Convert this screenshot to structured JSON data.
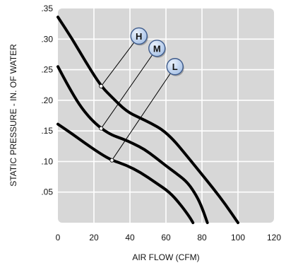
{
  "chart_data": {
    "type": "line",
    "xlabel": "AIR FLOW (CFM)",
    "ylabel": "STATIC PRESSURE - IN. OF WATER",
    "xlim": [
      0,
      120
    ],
    "ylim": [
      0,
      0.35
    ],
    "x_ticks": [
      {
        "value": 0,
        "label": "0"
      },
      {
        "value": 20,
        "label": "20"
      },
      {
        "value": 40,
        "label": "40"
      },
      {
        "value": 60,
        "label": "60"
      },
      {
        "value": 80,
        "label": "80"
      },
      {
        "value": 100,
        "label": "100"
      },
      {
        "value": 120,
        "label": "120"
      }
    ],
    "y_ticks": [
      {
        "value": 0.05,
        "label": ".05"
      },
      {
        "value": 0.1,
        "label": ".10"
      },
      {
        "value": 0.15,
        "label": ".15"
      },
      {
        "value": 0.2,
        "label": ".20"
      },
      {
        "value": 0.25,
        "label": ".25"
      },
      {
        "value": 0.3,
        "label": ".30"
      },
      {
        "value": 0.35,
        "label": ".35"
      }
    ],
    "grid": true,
    "series": [
      {
        "name": "H",
        "color": "#000000",
        "marker_at": [
          24,
          0.223
        ],
        "badge_at": [
          45,
          0.305
        ],
        "points": [
          [
            0,
            0.336
          ],
          [
            8,
            0.3
          ],
          [
            16,
            0.26
          ],
          [
            24,
            0.223
          ],
          [
            30,
            0.205
          ],
          [
            38,
            0.182
          ],
          [
            45,
            0.172
          ],
          [
            52,
            0.162
          ],
          [
            58,
            0.152
          ],
          [
            64,
            0.136
          ],
          [
            70,
            0.115
          ],
          [
            78,
            0.086
          ],
          [
            86,
            0.057
          ],
          [
            93,
            0.03
          ],
          [
            100,
            0.0
          ]
        ]
      },
      {
        "name": "M",
        "color": "#000000",
        "marker_at": [
          24,
          0.154
        ],
        "badge_at": [
          55,
          0.285
        ],
        "points": [
          [
            0,
            0.255
          ],
          [
            6,
            0.222
          ],
          [
            12,
            0.192
          ],
          [
            18,
            0.17
          ],
          [
            24,
            0.154
          ],
          [
            30,
            0.143
          ],
          [
            36,
            0.137
          ],
          [
            42,
            0.129
          ],
          [
            48,
            0.12
          ],
          [
            54,
            0.107
          ],
          [
            60,
            0.093
          ],
          [
            66,
            0.08
          ],
          [
            72,
            0.066
          ],
          [
            77,
            0.044
          ],
          [
            80,
            0.025
          ],
          [
            83,
            0.0
          ]
        ]
      },
      {
        "name": "L",
        "color": "#000000",
        "marker_at": [
          30,
          0.102
        ],
        "badge_at": [
          65,
          0.255
        ],
        "points": [
          [
            0,
            0.161
          ],
          [
            8,
            0.145
          ],
          [
            16,
            0.128
          ],
          [
            24,
            0.112
          ],
          [
            30,
            0.102
          ],
          [
            38,
            0.094
          ],
          [
            46,
            0.082
          ],
          [
            54,
            0.066
          ],
          [
            62,
            0.05
          ],
          [
            68,
            0.03
          ],
          [
            73,
            0.01
          ],
          [
            75,
            0.0
          ]
        ]
      }
    ]
  },
  "style": {
    "plot_bg": "#d7d7d7",
    "grid_color": "#ffffff",
    "badge_fill": "#a8c2e6",
    "badge_fill_light": "#eaf1fb",
    "badge_stroke": "#3d5a8a",
    "marker_fill": "#ffffff"
  }
}
